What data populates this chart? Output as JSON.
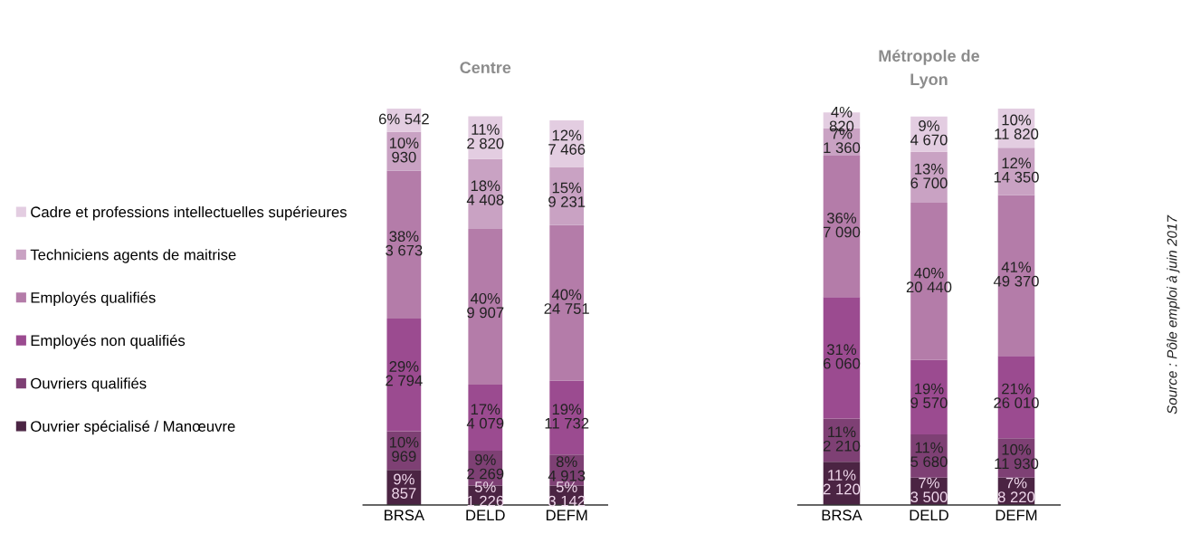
{
  "chart_data": [
    {
      "type": "bar",
      "title": "Centre",
      "stacked": true,
      "categories": [
        "BRSA",
        "DELD",
        "DEFM"
      ],
      "tick_labels": "x",
      "legend": "left",
      "series": [
        {
          "name": "Ouvrier spécialisé / Manœuvre",
          "color": "#4b2443",
          "values": [
            9,
            5,
            5
          ],
          "value_labels": [
            "9%\n857",
            "5%\n1 226",
            "5%\n3 142"
          ]
        },
        {
          "name": "Ouvriers qualifiés",
          "color": "#7e4074",
          "values": [
            10,
            9,
            8
          ],
          "value_labels": [
            "10%\n969",
            "9%\n2 269",
            "8%\n4 913"
          ]
        },
        {
          "name": "Employés non qualifiés",
          "color": "#9b4b90",
          "values": [
            29,
            17,
            19
          ],
          "value_labels": [
            "29%\n2 794",
            "17%\n4 079",
            "19%\n11 732"
          ]
        },
        {
          "name": "Employés qualifiés",
          "color": "#b47ca9",
          "values": [
            38,
            40,
            40
          ],
          "value_labels": [
            "38%\n3 673",
            "40%\n9 907",
            "40%\n24 751"
          ]
        },
        {
          "name": "Techniciens agents de maitrise",
          "color": "#c9a2c3",
          "values": [
            10,
            18,
            15
          ],
          "value_labels": [
            "10%\n930",
            "18%\n4 408",
            "15%\n9 231"
          ]
        },
        {
          "name": "Cadre et professions intellectuelles supérieures",
          "color": "#e3cde1",
          "values": [
            6,
            11,
            12
          ],
          "value_labels": [
            "6% 542",
            "11%\n2 820",
            "12%\n7 466"
          ]
        }
      ]
    },
    {
      "type": "bar",
      "title": "Métropole de\nLyon",
      "stacked": true,
      "categories": [
        "BRSA",
        "DELD",
        "DEFM"
      ],
      "tick_labels": "x",
      "annotations": [
        "Source : Pôle emploi à juin 2017"
      ],
      "series": [
        {
          "color": "#4b2443",
          "values": [
            11,
            7,
            7
          ],
          "value_labels": [
            "11%\n2 120",
            "7%\n3 500",
            "7%\n8 220"
          ]
        },
        {
          "color": "#7e4074",
          "values": [
            11,
            11,
            10
          ],
          "value_labels": [
            "11%\n2 210",
            "11%\n5 680",
            "10%\n11 930"
          ]
        },
        {
          "color": "#9b4b90",
          "values": [
            31,
            19,
            21
          ],
          "value_labels": [
            "31%\n6 060",
            "19%\n9 570",
            "21%\n26 010"
          ]
        },
        {
          "color": "#b47ca9",
          "values": [
            36,
            40,
            41
          ],
          "value_labels": [
            "36%\n7 090",
            "40%\n20 440",
            "41%\n49 370"
          ]
        },
        {
          "color": "#c9a2c3",
          "values": [
            7,
            13,
            12
          ],
          "value_labels": [
            "7%\n1 360",
            "13%\n6 700",
            "12%\n14 350"
          ]
        },
        {
          "color": "#e3cde1",
          "values": [
            4,
            9,
            10
          ],
          "value_labels": [
            "4%\n820",
            "9%\n4 670",
            "10%\n11 820"
          ]
        }
      ]
    }
  ]
}
